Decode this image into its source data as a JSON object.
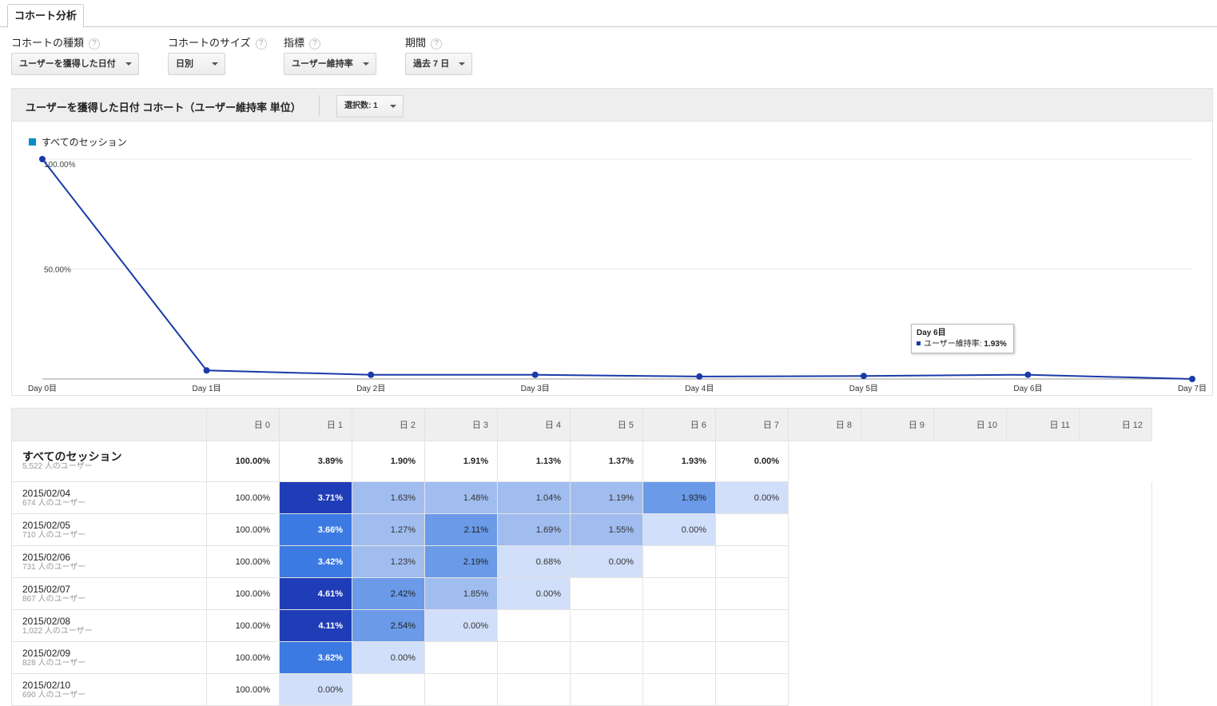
{
  "tab": {
    "label": "コホート分析"
  },
  "controls": [
    {
      "label": "コホートの種類",
      "help": "?",
      "value": "ユーザーを獲得した日付"
    },
    {
      "label": "コホートのサイズ",
      "help": "?",
      "value": "日別"
    },
    {
      "label": "指標",
      "help": "?",
      "value": "ユーザー維持率"
    },
    {
      "label": "期間",
      "help": "?",
      "value": "過去 7 日"
    }
  ],
  "panel": {
    "title": "ユーザーを獲得した日付 コホート（ユーザー維持率 単位）",
    "selection": "選択数: 1",
    "legend": "すべてのセッション"
  },
  "chart_data": {
    "type": "line",
    "x": [
      "Day 0目",
      "Day 1目",
      "Day 2目",
      "Day 3目",
      "Day 4目",
      "Day 5目",
      "Day 6目",
      "Day 7目"
    ],
    "series": [
      {
        "name": "すべてのセッション",
        "values": [
          100.0,
          3.89,
          1.9,
          1.91,
          1.13,
          1.37,
          1.93,
          0.0
        ]
      }
    ],
    "y_ticks": [
      "100.00%",
      "50.00%"
    ],
    "ylim": [
      0,
      100
    ],
    "grid": true,
    "legend_position": "top-left",
    "color": "#1a3aa8"
  },
  "tooltip": {
    "title": "Day 6目",
    "label": "ユーザー維持率:",
    "value": "1.93%"
  },
  "table": {
    "columns": [
      "日 0",
      "日 1",
      "日 2",
      "日 3",
      "日 4",
      "日 5",
      "日 6",
      "日 7",
      "日 8",
      "日 9",
      "日 10",
      "日 11",
      "日 12"
    ],
    "summary": {
      "label": "すべてのセッション",
      "users": "5,522 人のユーザー",
      "values": [
        "100.00%",
        "3.89%",
        "1.90%",
        "1.91%",
        "1.13%",
        "1.37%",
        "1.93%",
        "0.00%"
      ]
    },
    "rows": [
      {
        "date": "2015/02/04",
        "users": "674 人のユーザー",
        "values": [
          "100.00%",
          "3.71%",
          "1.63%",
          "1.48%",
          "1.04%",
          "1.19%",
          "1.93%",
          "0.00%"
        ]
      },
      {
        "date": "2015/02/05",
        "users": "710 人のユーザー",
        "values": [
          "100.00%",
          "3.66%",
          "1.27%",
          "2.11%",
          "1.69%",
          "1.55%",
          "0.00%"
        ]
      },
      {
        "date": "2015/02/06",
        "users": "731 人のユーザー",
        "values": [
          "100.00%",
          "3.42%",
          "1.23%",
          "2.19%",
          "0.68%",
          "0.00%"
        ]
      },
      {
        "date": "2015/02/07",
        "users": "867 人のユーザー",
        "values": [
          "100.00%",
          "4.61%",
          "2.42%",
          "1.85%",
          "0.00%"
        ]
      },
      {
        "date": "2015/02/08",
        "users": "1,022 人のユーザー",
        "values": [
          "100.00%",
          "4.11%",
          "2.54%",
          "0.00%"
        ]
      },
      {
        "date": "2015/02/09",
        "users": "828 人のユーザー",
        "values": [
          "100.00%",
          "3.62%",
          "0.00%"
        ]
      },
      {
        "date": "2015/02/10",
        "users": "690 人のユーザー",
        "values": [
          "100.00%",
          "0.00%"
        ]
      }
    ]
  }
}
